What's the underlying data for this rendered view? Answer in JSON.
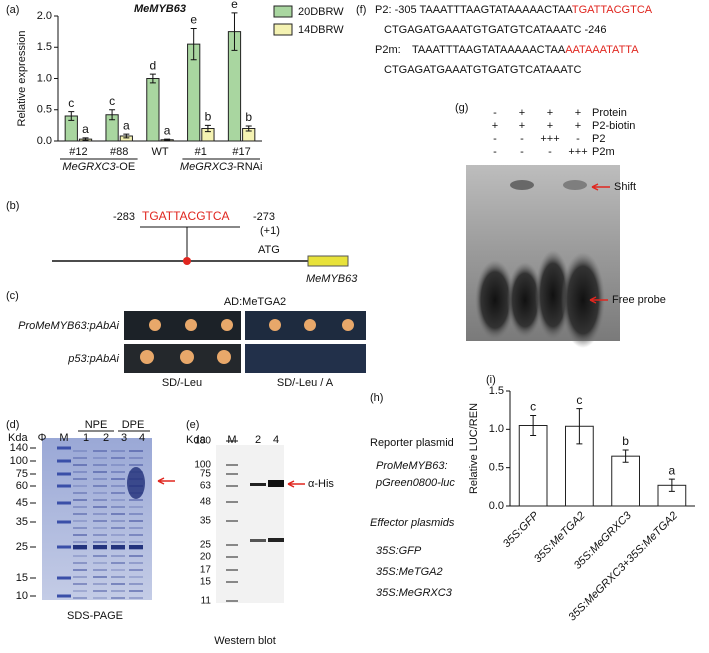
{
  "labels": {
    "a": "(a)",
    "b": "(b)",
    "c": "(c)",
    "d": "(d)",
    "e": "(e)",
    "f": "(f)",
    "g": "(g)",
    "h": "(h)",
    "i": "(i)"
  },
  "chart_data": [
    {
      "type": "bar",
      "title": "MeMYB63",
      "ylabel": "Relative expression",
      "categories": [
        "#12",
        "#88",
        "WT",
        "#1",
        "#17"
      ],
      "groups": [
        {
          "gene": "MeGRXC3",
          "suffix": "-OE"
        },
        {
          "gene": "MeGRXC3",
          "suffix": "-RNAi"
        }
      ],
      "series": [
        {
          "name": "20DBRW",
          "color": "#a9d6a0",
          "values": [
            0.4,
            0.42,
            1.0,
            1.55,
            1.75
          ],
          "errors": [
            0.07,
            0.08,
            0.07,
            0.25,
            0.3
          ],
          "letters": [
            "c",
            "c",
            "d",
            "e",
            "e"
          ]
        },
        {
          "name": "14DBRW",
          "color": "#f4f2b2",
          "values": [
            0.03,
            0.08,
            0.02,
            0.2,
            0.2
          ],
          "errors": [
            0.02,
            0.03,
            0.01,
            0.05,
            0.04
          ],
          "letters": [
            "a",
            "a",
            "a",
            "b",
            "b"
          ]
        }
      ],
      "ylim": [
        0,
        2
      ],
      "yticks": [
        {
          "value": 0,
          "label": "0.0"
        },
        0.5,
        {
          "value": 1,
          "label": "1.0"
        },
        1.5,
        {
          "value": 2,
          "label": "2.0"
        }
      ],
      "legend": "upper right"
    },
    {
      "type": "bar",
      "ylabel": "Relative LUC/REN",
      "categories": [
        "35S:GFP",
        "35S:MeTGA2",
        "35S:MeGRXC3",
        "35S:MeGRXC3+35S:MeTGA2"
      ],
      "series": [
        {
          "color": "#ffffff",
          "values": [
            1.05,
            1.04,
            0.65,
            0.27
          ],
          "errors": [
            0.13,
            0.23,
            0.08,
            0.08
          ],
          "letters": [
            "c",
            "c",
            "b",
            "a"
          ]
        }
      ],
      "ylim": [
        0,
        1.5
      ],
      "yticks": [
        {
          "value": 0,
          "label": "0.0"
        },
        0.5,
        {
          "value": 1,
          "label": "1.0"
        },
        1.5
      ]
    }
  ],
  "panel_b": {
    "start": "-283",
    "site": "TGATTACGTCA",
    "end": "-273",
    "tss": "(+1)",
    "atg": "ATG",
    "gene": "MeMYB63"
  },
  "panel_c": {
    "ad": "AD:MeTGA2",
    "rows": [
      "ProMeMYB63:pAbAi",
      "p53:pAbAi"
    ],
    "media": [
      "SD/-Leu",
      "SD/-Leu / A"
    ]
  },
  "panel_d": {
    "kda": "Kda",
    "lanes": [
      "Φ",
      "M",
      "1",
      "2",
      "3",
      "4"
    ],
    "groups": [
      "NPE",
      "DPE"
    ],
    "markers": [
      140,
      100,
      75,
      60,
      45,
      35,
      25,
      15,
      10
    ],
    "caption": "SDS-PAGE"
  },
  "panel_e": {
    "kda": "Kda",
    "lanes": [
      "M",
      "2",
      "4"
    ],
    "markers": [
      180,
      100,
      75,
      63,
      48,
      35,
      25,
      20,
      17,
      15,
      11
    ],
    "tag": "α-His",
    "caption": "Western blot"
  },
  "panel_f": {
    "p2": {
      "name": "P2:",
      "start": "-305",
      "seq": "TAAATTTAAGTATAAAAACTAA",
      "site": "TGATTACGTCA",
      "seq2": "CTGAGATGAAATGTGATGTCATAAATC",
      "end": "-246"
    },
    "p2m": {
      "name": "P2m:",
      "seq": "TAAATTTAAGTATAAAAACTAA",
      "site": "AATAAATATTA",
      "seq2": "CTGAGATGAAATGTGATGTCATAAATC"
    }
  },
  "panel_g": {
    "rows": [
      {
        "name": "Protein",
        "cells": [
          "-",
          "+",
          "+",
          "+"
        ]
      },
      {
        "name": "P2-biotin",
        "cells": [
          "+",
          "+",
          "+",
          "+"
        ]
      },
      {
        "name": "P2",
        "cells": [
          "-",
          "-",
          "+++",
          "-"
        ]
      },
      {
        "name": "P2m",
        "cells": [
          "-",
          "-",
          "-",
          "+++"
        ]
      }
    ],
    "shift": "Shift",
    "free": "Free probe"
  },
  "panel_h": {
    "reporter_title": "Reporter plasmid",
    "reporter": [
      "ProMeMYB63:",
      "pGreen0800-luc"
    ],
    "effector_title": "Effector plasmids",
    "effectors": [
      "35S:GFP",
      "35S:MeTGA2",
      "35S:MeGRXC3"
    ]
  }
}
